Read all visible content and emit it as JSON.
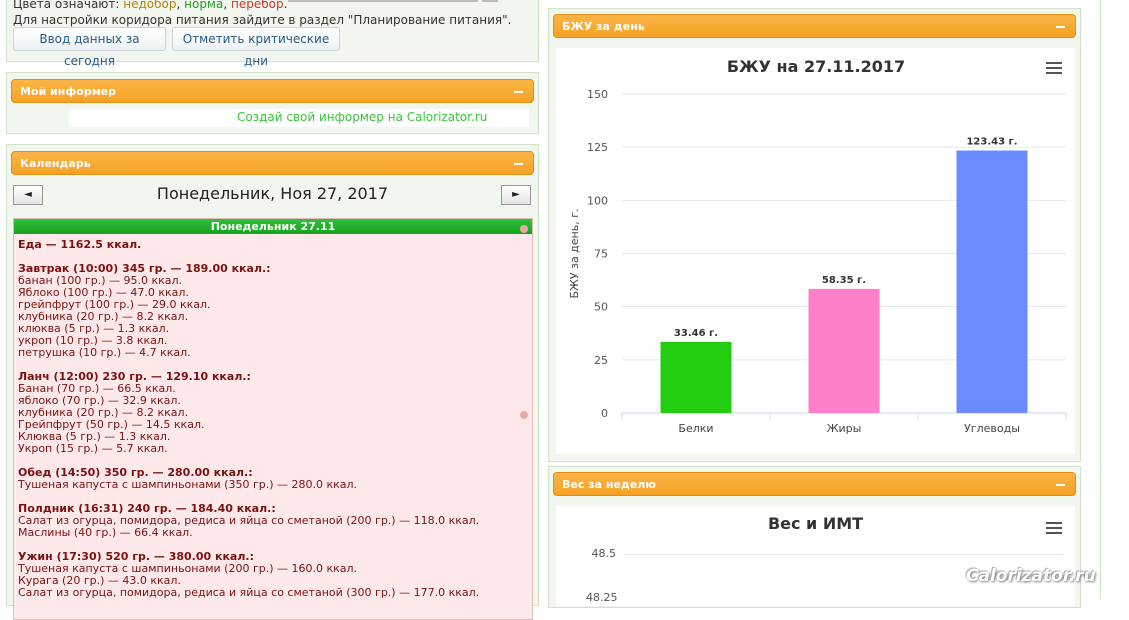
{
  "top": {
    "legend_text_prefix": "Цвета означают: ",
    "legend_under": "недобор",
    "legend_norm": "норма",
    "legend_over": "перебор",
    "legend_corridor": "Для настройки коридора питания зайдите в раздел \"Планирование питания\".",
    "btn_today": "Ввод данных за сегодня",
    "btn_critical": "Отметить критические дни"
  },
  "informer": {
    "title": "Мой информер",
    "link": "Создай свой информер на Calorizator.ru"
  },
  "calendar": {
    "title": "Календарь",
    "date_title": "Понедельник, Ноя 27, 2017",
    "prev": "◄",
    "next": "►",
    "day_header": "Понедельник 27.11",
    "entries": [
      {
        "t": "Еда — 1162.5 ккал.",
        "b": true
      },
      {
        "t": "",
        "b": false
      },
      {
        "t": "Завтрак (10:00) 345 гр. — 189.00 ккал.:",
        "b": true
      },
      {
        "t": " банан (100 гр.) — 95.0 ккал.",
        "b": false
      },
      {
        "t": " Яблоко (100 гр.) — 47.0 ккал.",
        "b": false
      },
      {
        "t": " грейпфрут (100 гр.) — 29.0 ккал.",
        "b": false
      },
      {
        "t": " клубника (20 гр.) — 8.2 ккал.",
        "b": false
      },
      {
        "t": " клюква (5 гр.) — 1.3 ккал.",
        "b": false
      },
      {
        "t": " укроп (10 гр.) — 3.8 ккал.",
        "b": false
      },
      {
        "t": " петрушка (10 гр.) — 4.7 ккал.",
        "b": false
      },
      {
        "t": "",
        "b": false
      },
      {
        "t": "Ланч (12:00) 230 гр. — 129.10 ккал.:",
        "b": true
      },
      {
        "t": " Банан (70 гр.) — 66.5 ккал.",
        "b": false
      },
      {
        "t": " яблоко (70 гр.) — 32.9 ккал.",
        "b": false
      },
      {
        "t": " клубника (20 гр.) — 8.2 ккал.",
        "b": false
      },
      {
        "t": " Грейпфрут (50 гр.) — 14.5 ккал.",
        "b": false
      },
      {
        "t": " Клюква (5 гр.) — 1.3 ккал.",
        "b": false
      },
      {
        "t": " Укроп (15 гр.) — 5.7 ккал.",
        "b": false
      },
      {
        "t": "",
        "b": false
      },
      {
        "t": "Обед (14:50) 350 гр. — 280.00 ккал.:",
        "b": true
      },
      {
        "t": " Тушеная капуста с шампиньонами (350 гр.) — 280.0 ккал.",
        "b": false
      },
      {
        "t": "",
        "b": false
      },
      {
        "t": "Полдник (16:31) 240 гр. — 184.40 ккал.:",
        "b": true
      },
      {
        "t": " Салат из огурца, помидора, редиса и яйца со сметаной (200 гр.) — 118.0 ккал.",
        "b": false
      },
      {
        "t": " Маслины (40 гр.) — 66.4 ккал.",
        "b": false
      },
      {
        "t": "",
        "b": false
      },
      {
        "t": "Ужин (17:30) 520 гр. — 380.00 ккал.:",
        "b": true
      },
      {
        "t": " Тушеная капуста с шампиньонами (200 гр.) — 160.0 ккал.",
        "b": false
      },
      {
        "t": " Курага (20 гр.) — 43.0 ккал.",
        "b": false
      },
      {
        "t": " Салат из огурца, помидора, редиса и яйца со сметаной (300 гр.) — 177.0 ккал.",
        "b": false
      }
    ]
  },
  "bju_panel": {
    "title": "БЖУ за день"
  },
  "weight_panel": {
    "title": "Вес за неделю"
  },
  "chart_data": [
    {
      "type": "bar",
      "title": "БЖУ на 27.11.2017",
      "ylabel": "БЖУ за день, г.",
      "categories": [
        "Белки",
        "Жиры",
        "Углеводы"
      ],
      "values": [
        33.46,
        58.35,
        123.43
      ],
      "data_labels": [
        "33.46 г.",
        "58.35 г.",
        "123.43 г."
      ],
      "colors": [
        "#22cc11",
        "#ff7fc9",
        "#6b8cff"
      ],
      "ylim": [
        0,
        150
      ],
      "yticks": [
        0,
        25,
        50,
        75,
        100,
        125,
        150
      ],
      "grid": true
    },
    {
      "type": "line",
      "title": "Вес и ИМТ",
      "yticks_visible": [
        "48.5",
        "48.25"
      ]
    }
  ],
  "watermark": "Calorizator.ru"
}
